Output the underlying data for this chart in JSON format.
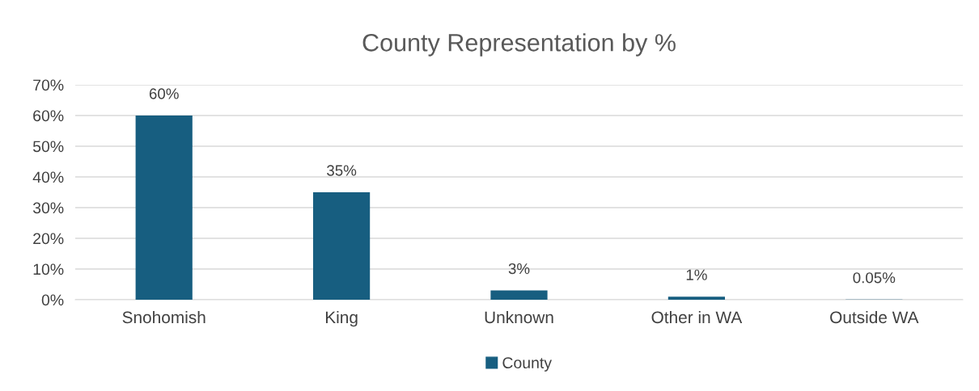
{
  "chart_data": {
    "type": "bar",
    "title": "County Representation by %",
    "categories": [
      "Snohomish",
      "King",
      "Unknown",
      "Other in WA",
      "Outside WA"
    ],
    "series": [
      {
        "name": "County",
        "color": "#175e80",
        "values": [
          60,
          35,
          3,
          1,
          0.05
        ],
        "value_labels": [
          "60%",
          "35%",
          "3%",
          "1%",
          "0.05%"
        ]
      }
    ],
    "ylim": [
      0,
      70
    ],
    "yticks": [
      {
        "value": 0,
        "label": "0%"
      },
      {
        "value": 10,
        "label": "10%"
      },
      {
        "value": 20,
        "label": "20%"
      },
      {
        "value": 30,
        "label": "30%"
      },
      {
        "value": 40,
        "label": "40%"
      },
      {
        "value": 50,
        "label": "50%"
      },
      {
        "value": 60,
        "label": "60%"
      },
      {
        "value": 70,
        "label": "70%"
      }
    ],
    "grid": "y",
    "legend": "bottom"
  }
}
